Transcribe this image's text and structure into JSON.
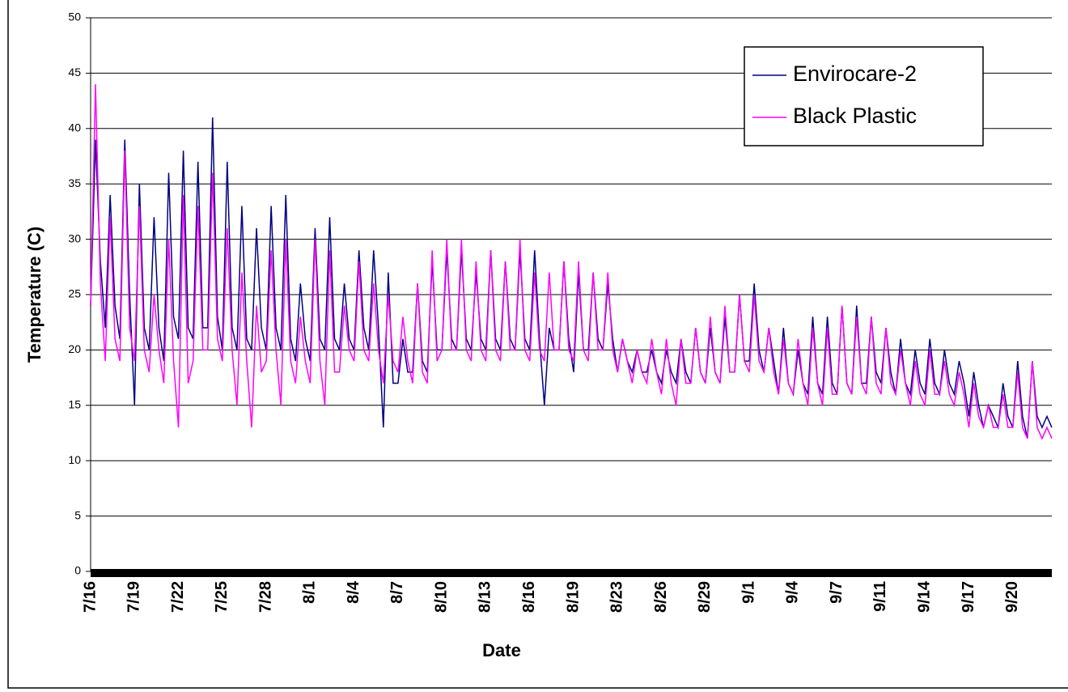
{
  "chart_data": {
    "type": "line",
    "y_label": "Temperature (C)",
    "x_label": "Date",
    "ylim": [
      0,
      50
    ],
    "yticks": [
      0,
      5,
      10,
      15,
      20,
      25,
      30,
      35,
      40,
      45,
      50
    ],
    "grid": true,
    "legend": "top-right",
    "categories": [
      "7/16",
      null,
      null,
      null,
      null,
      null,
      null,
      null,
      null,
      "7/19",
      null,
      null,
      null,
      null,
      null,
      null,
      null,
      null,
      "7/22",
      null,
      null,
      null,
      null,
      null,
      null,
      null,
      null,
      "7/25",
      null,
      null,
      null,
      null,
      null,
      null,
      null,
      null,
      "7/28",
      null,
      null,
      null,
      null,
      null,
      null,
      null,
      null,
      "8/1",
      null,
      null,
      null,
      null,
      null,
      null,
      null,
      null,
      "8/4",
      null,
      null,
      null,
      null,
      null,
      null,
      null,
      null,
      "8/7",
      null,
      null,
      null,
      null,
      null,
      null,
      null,
      null,
      "8/10",
      null,
      null,
      null,
      null,
      null,
      null,
      null,
      null,
      "8/13",
      null,
      null,
      null,
      null,
      null,
      null,
      null,
      null,
      "8/16",
      null,
      null,
      null,
      null,
      null,
      null,
      null,
      null,
      "8/19",
      null,
      null,
      null,
      null,
      null,
      null,
      null,
      null,
      "8/23",
      null,
      null,
      null,
      null,
      null,
      null,
      null,
      null,
      "8/26",
      null,
      null,
      null,
      null,
      null,
      null,
      null,
      null,
      "8/29",
      null,
      null,
      null,
      null,
      null,
      null,
      null,
      null,
      "9/1",
      null,
      null,
      null,
      null,
      null,
      null,
      null,
      null,
      "9/4",
      null,
      null,
      null,
      null,
      null,
      null,
      null,
      null,
      "9/7",
      null,
      null,
      null,
      null,
      null,
      null,
      null,
      null,
      "9/11",
      null,
      null,
      null,
      null,
      null,
      null,
      null,
      null,
      "9/14",
      null,
      null,
      null,
      null,
      null,
      null,
      null,
      null,
      "9/17",
      null,
      null,
      null,
      null,
      null,
      null,
      null,
      null,
      "9/20",
      null,
      null,
      null,
      null,
      null,
      null,
      null,
      null
    ],
    "series": [
      {
        "name": "Envirocare-2",
        "color": "#000080",
        "values": [
          24,
          39,
          28,
          22,
          34,
          24,
          21,
          39,
          25,
          15,
          35,
          22,
          20,
          32,
          22,
          19,
          36,
          23,
          21,
          38,
          22,
          21,
          37,
          22,
          22,
          41,
          23,
          20,
          37,
          22,
          20,
          33,
          21,
          20,
          31,
          22,
          20,
          33,
          22,
          20,
          34,
          21,
          19,
          26,
          21,
          19,
          31,
          21,
          20,
          32,
          21,
          20,
          26,
          21,
          20,
          29,
          22,
          20,
          29,
          22,
          13,
          27,
          17,
          17,
          21,
          18,
          18,
          26,
          19,
          18,
          28,
          20,
          20,
          29,
          21,
          20,
          29,
          21,
          20,
          27,
          21,
          20,
          29,
          21,
          20,
          28,
          21,
          20,
          29,
          21,
          20,
          29,
          21,
          15,
          22,
          20,
          20,
          28,
          21,
          18,
          27,
          20,
          20,
          27,
          21,
          20,
          26,
          21,
          18,
          21,
          19,
          18,
          20,
          18,
          18,
          20,
          18,
          17,
          20,
          18,
          17,
          21,
          18,
          17,
          22,
          18,
          17,
          22,
          18,
          17,
          23,
          18,
          18,
          25,
          19,
          19,
          26,
          20,
          18,
          22,
          19,
          16,
          22,
          17,
          16,
          20,
          17,
          16,
          23,
          17,
          16,
          23,
          17,
          16,
          24,
          17,
          16,
          24,
          17,
          17,
          23,
          18,
          17,
          22,
          18,
          16,
          21,
          17,
          16,
          20,
          17,
          16,
          21,
          17,
          16,
          20,
          17,
          16,
          19,
          17,
          14,
          18,
          15,
          13,
          15,
          14,
          13,
          17,
          14,
          13,
          19,
          14,
          12,
          19,
          14,
          13,
          14,
          13
        ]
      },
      {
        "name": "Black Plastic",
        "color": "#ff00ff",
        "values": [
          24,
          44,
          26,
          19,
          32,
          21,
          19,
          38,
          22,
          19,
          33,
          20,
          18,
          25,
          20,
          17,
          30,
          19,
          13,
          34,
          17,
          19,
          33,
          20,
          20,
          36,
          21,
          19,
          31,
          20,
          15,
          27,
          19,
          13,
          24,
          18,
          19,
          29,
          20,
          15,
          30,
          19,
          17,
          23,
          19,
          17,
          30,
          19,
          15,
          29,
          18,
          18,
          24,
          20,
          19,
          28,
          20,
          19,
          26,
          20,
          17,
          25,
          19,
          18,
          23,
          19,
          17,
          26,
          18,
          17,
          29,
          19,
          20,
          30,
          20,
          20,
          30,
          20,
          19,
          28,
          20,
          19,
          29,
          20,
          19,
          28,
          20,
          20,
          30,
          20,
          19,
          27,
          20,
          19,
          27,
          20,
          20,
          28,
          20,
          19,
          28,
          20,
          19,
          27,
          20,
          20,
          27,
          20,
          18,
          21,
          19,
          17,
          20,
          18,
          17,
          21,
          18,
          16,
          21,
          17,
          15,
          21,
          17,
          17,
          22,
          18,
          17,
          23,
          18,
          17,
          24,
          18,
          18,
          25,
          19,
          18,
          25,
          19,
          18,
          22,
          18,
          16,
          21,
          17,
          16,
          21,
          17,
          15,
          22,
          17,
          15,
          22,
          16,
          16,
          24,
          17,
          16,
          23,
          17,
          16,
          23,
          17,
          16,
          22,
          17,
          16,
          20,
          17,
          15,
          19,
          16,
          15,
          20,
          16,
          16,
          19,
          16,
          15,
          18,
          16,
          13,
          17,
          14,
          13,
          15,
          13,
          13,
          16,
          13,
          13,
          18,
          13,
          12,
          19,
          13,
          12,
          13,
          12
        ]
      }
    ]
  }
}
